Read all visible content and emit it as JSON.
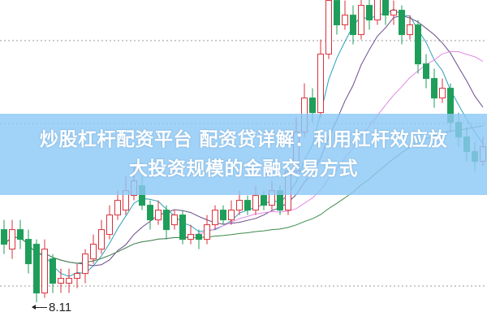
{
  "chart_data": {
    "type": "candlestick",
    "title": "",
    "xlabel": "",
    "ylabel": "",
    "ylim": [
      7.6,
      14.8
    ],
    "grid": "dotted horizontal",
    "colors": {
      "up": "#d9303a",
      "down": "#1e9e5a",
      "ma5": "#2aa0b8",
      "ma10": "#6a4a8a",
      "ma20": "#e48ae4",
      "ma60": "#3a8a4a"
    },
    "annotations": [
      {
        "text": "8.11",
        "value": 8.11
      }
    ],
    "ohlc": [
      [
        9.6,
        9.8,
        9.1,
        9.3
      ],
      [
        9.2,
        9.8,
        9.0,
        9.6
      ],
      [
        9.6,
        9.8,
        9.2,
        9.4
      ],
      [
        9.4,
        9.6,
        8.7,
        8.9
      ],
      [
        9.3,
        9.4,
        8.11,
        8.3
      ],
      [
        8.3,
        9.4,
        8.2,
        9.2
      ],
      [
        9.0,
        9.1,
        8.3,
        8.5
      ],
      [
        8.5,
        8.8,
        8.3,
        8.6
      ],
      [
        8.5,
        8.8,
        8.3,
        8.6
      ],
      [
        8.6,
        8.9,
        8.4,
        8.7
      ],
      [
        8.7,
        9.2,
        8.5,
        9.1
      ],
      [
        9.0,
        9.5,
        8.9,
        9.3
      ],
      [
        9.2,
        9.8,
        9.1,
        9.6
      ],
      [
        9.5,
        10.1,
        9.4,
        9.9
      ],
      [
        9.9,
        10.4,
        9.8,
        10.2
      ],
      [
        10.0,
        10.7,
        9.9,
        10.4
      ],
      [
        10.3,
        10.9,
        10.2,
        10.6
      ],
      [
        10.5,
        10.7,
        10.0,
        10.1
      ],
      [
        10.1,
        10.2,
        9.6,
        9.8
      ],
      [
        9.8,
        10.2,
        9.7,
        10.0
      ],
      [
        10.0,
        10.1,
        9.4,
        9.6
      ],
      [
        9.7,
        10.0,
        9.6,
        9.9
      ],
      [
        9.9,
        10.0,
        9.3,
        9.4
      ],
      [
        9.4,
        9.7,
        9.3,
        9.5
      ],
      [
        9.5,
        9.6,
        9.2,
        9.4
      ],
      [
        9.4,
        9.9,
        9.3,
        9.7
      ],
      [
        9.7,
        10.1,
        9.6,
        10.0
      ],
      [
        10.0,
        10.1,
        9.7,
        9.8
      ],
      [
        9.8,
        10.2,
        9.7,
        10.0
      ],
      [
        10.0,
        10.4,
        9.9,
        10.2
      ],
      [
        10.2,
        10.3,
        9.9,
        10.0
      ],
      [
        10.0,
        10.5,
        9.9,
        10.3
      ],
      [
        10.3,
        10.4,
        10.0,
        10.1
      ],
      [
        10.1,
        10.6,
        10.0,
        10.4
      ],
      [
        10.4,
        10.5,
        9.9,
        10.0
      ],
      [
        10.0,
        11.0,
        9.9,
        10.8
      ],
      [
        10.8,
        11.9,
        10.7,
        11.6
      ],
      [
        11.6,
        12.6,
        11.5,
        12.3
      ],
      [
        12.3,
        12.5,
        11.8,
        12.0
      ],
      [
        12.0,
        13.5,
        11.9,
        13.2
      ],
      [
        13.2,
        14.6,
        13.1,
        14.3
      ],
      [
        14.3,
        14.6,
        13.6,
        13.8
      ],
      [
        13.8,
        14.3,
        13.7,
        14.0
      ],
      [
        14.0,
        14.2,
        13.4,
        13.6
      ],
      [
        13.6,
        14.5,
        13.5,
        14.2
      ],
      [
        14.2,
        14.4,
        13.7,
        13.9
      ],
      [
        13.9,
        14.7,
        13.8,
        14.4
      ],
      [
        14.4,
        14.6,
        13.8,
        14.0
      ],
      [
        14.0,
        14.3,
        13.8,
        14.1
      ],
      [
        14.1,
        14.2,
        13.4,
        13.6
      ],
      [
        13.6,
        14.0,
        13.5,
        13.8
      ],
      [
        13.8,
        13.9,
        12.8,
        13.0
      ],
      [
        13.0,
        13.2,
        12.5,
        12.7
      ],
      [
        12.7,
        12.9,
        12.1,
        12.3
      ],
      [
        12.3,
        12.7,
        12.2,
        12.5
      ],
      [
        12.5,
        12.6,
        11.6,
        11.8
      ],
      [
        11.8,
        12.0,
        11.3,
        11.5
      ],
      [
        11.5,
        11.7,
        11.0,
        11.2
      ],
      [
        11.2,
        11.4,
        10.8,
        11.0
      ],
      [
        11.0,
        11.5,
        10.9,
        11.3
      ]
    ]
  },
  "banner": {
    "line1": "炒股杠杆配资平台 配资贷详解：利用杠杆效应放",
    "line2": "大投资规模的金融交易方式"
  }
}
